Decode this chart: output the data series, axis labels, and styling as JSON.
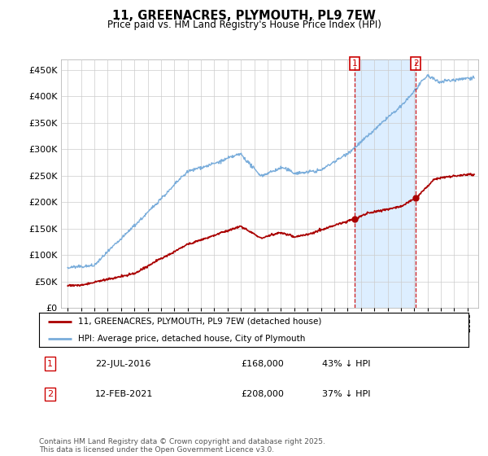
{
  "title": "11, GREENACRES, PLYMOUTH, PL9 7EW",
  "subtitle": "Price paid vs. HM Land Registry's House Price Index (HPI)",
  "ylabel_values": [
    0,
    50000,
    100000,
    150000,
    200000,
    250000,
    300000,
    350000,
    400000,
    450000
  ],
  "ylim": [
    0,
    470000
  ],
  "xlim_start": 1994.5,
  "xlim_end": 2025.8,
  "sale1_date": "22-JUL-2016",
  "sale1_price": 168000,
  "sale1_pct": "43%",
  "sale1_year": 2016.55,
  "sale2_date": "12-FEB-2021",
  "sale2_price": 208000,
  "sale2_pct": "37%",
  "sale2_year": 2021.12,
  "legend_property": "11, GREENACRES, PLYMOUTH, PL9 7EW (detached house)",
  "legend_hpi": "HPI: Average price, detached house, City of Plymouth",
  "footer": "Contains HM Land Registry data © Crown copyright and database right 2025.\nThis data is licensed under the Open Government Licence v3.0.",
  "line_property_color": "#aa0000",
  "line_hpi_color": "#7aaddb",
  "bg_color": "#ffffff",
  "highlight_color": "#ddeeff",
  "grid_color": "#cccccc",
  "marker_box_color": "#cc0000"
}
